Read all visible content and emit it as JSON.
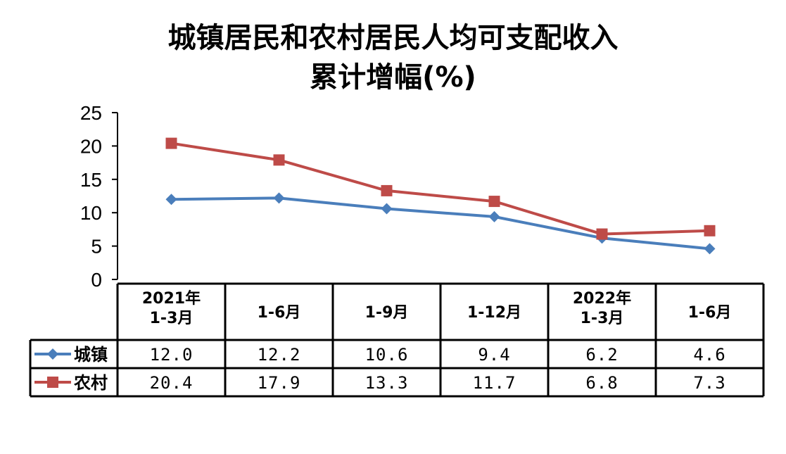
{
  "chart_data": {
    "type": "line",
    "title_line1": "城镇居民和农村居民人均可支配收入",
    "title_line2": "累计增幅(%)",
    "categories": [
      "2021年\n1-3月",
      "1-6月",
      "1-9月",
      "1-12月",
      "2022年\n1-3月",
      "1-6月"
    ],
    "ylim": [
      0,
      25
    ],
    "yticks": [
      0,
      5,
      10,
      15,
      20,
      25
    ],
    "legend_placement": "data-table",
    "series": [
      {
        "name": "城镇",
        "values": [
          12.0,
          12.2,
          10.6,
          9.4,
          6.2,
          4.6
        ],
        "labels": [
          "12.0",
          "12.2",
          "10.6",
          "9.4",
          "6.2",
          "4.6"
        ],
        "color": "#4a7ebb",
        "marker": "diamond"
      },
      {
        "name": "农村",
        "values": [
          20.4,
          17.9,
          13.3,
          11.7,
          6.8,
          7.3
        ],
        "labels": [
          "20.4",
          "17.9",
          "13.3",
          "11.7",
          "6.8",
          "7.3"
        ],
        "color": "#be4b48",
        "marker": "square"
      }
    ]
  }
}
